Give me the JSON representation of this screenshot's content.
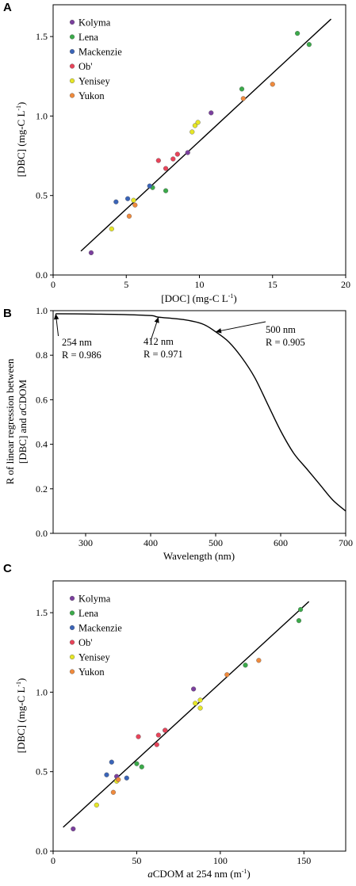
{
  "figure": {
    "panels": [
      {
        "letter": "A",
        "xlabel_parts": [
          "[DOC] (mg-C L",
          "-1",
          ")"
        ],
        "ylabel_parts": [
          "[DBC] (mg-C L",
          "-1",
          ")"
        ]
      },
      {
        "letter": "B",
        "xlabel_parts": [
          "Wavelength (nm)"
        ],
        "ylabel_line1": "R of linear regression between",
        "ylabel_line2_parts": [
          "[DBC] and ",
          "a",
          "CDOM"
        ],
        "annotations": [
          {
            "line1": "254 nm",
            "line2": "R = 0.986"
          },
          {
            "line1": "412 nm",
            "line2": "R = 0.971"
          },
          {
            "line1": "500 nm",
            "line2": "R = 0.905"
          }
        ]
      },
      {
        "letter": "C",
        "xlabel_parts": [
          "a",
          "CDOM at 254 nm (m",
          "-1",
          ")"
        ],
        "ylabel_parts": [
          "[DBC] (mg-C L",
          "-1",
          ")"
        ]
      }
    ]
  },
  "chart_data": [
    {
      "type": "scatter",
      "title": "",
      "xlabel": "[DOC] (mg-C L-1)",
      "ylabel": "[DBC] (mg-C L-1)",
      "xlim": [
        0,
        20
      ],
      "ylim": [
        0,
        1.7
      ],
      "xticks": [
        "0",
        "5",
        "10",
        "15",
        "20"
      ],
      "yticks": [
        "0.0",
        "0.5",
        "1.0",
        "1.5"
      ],
      "legend_position": "top-left",
      "series": [
        {
          "name": "Kolyma",
          "color": "#7B3F9E",
          "points": [
            [
              2.6,
              0.14
            ],
            [
              9.2,
              0.77
            ],
            [
              10.8,
              1.02
            ]
          ]
        },
        {
          "name": "Lena",
          "color": "#3BAA4A",
          "points": [
            [
              6.8,
              0.55
            ],
            [
              7.7,
              0.53
            ],
            [
              12.9,
              1.17
            ],
            [
              16.7,
              1.52
            ],
            [
              17.5,
              1.45
            ]
          ]
        },
        {
          "name": "Mackenzie",
          "color": "#3A64B8",
          "points": [
            [
              4.3,
              0.46
            ],
            [
              5.1,
              0.48
            ],
            [
              6.6,
              0.56
            ]
          ]
        },
        {
          "name": "Ob'",
          "color": "#E8445A",
          "points": [
            [
              7.2,
              0.72
            ],
            [
              7.7,
              0.67
            ],
            [
              8.2,
              0.73
            ],
            [
              8.5,
              0.76
            ]
          ]
        },
        {
          "name": "Yenisey",
          "color": "#E6E626",
          "points": [
            [
              4.0,
              0.29
            ],
            [
              5.5,
              0.47
            ],
            [
              9.5,
              0.9
            ],
            [
              9.7,
              0.94
            ],
            [
              9.9,
              0.96
            ]
          ]
        },
        {
          "name": "Yukon",
          "color": "#F08A3C",
          "points": [
            [
              5.2,
              0.37
            ],
            [
              5.6,
              0.44
            ],
            [
              13.0,
              1.11
            ],
            [
              15.0,
              1.2
            ]
          ]
        }
      ],
      "fit_line": [
        [
          1.9,
          0.15
        ],
        [
          19.0,
          1.61
        ]
      ]
    },
    {
      "type": "line",
      "title": "",
      "xlabel": "Wavelength (nm)",
      "ylabel": "R of linear regression between [DBC] and aCDOM",
      "xlim": [
        250,
        700
      ],
      "ylim": [
        0,
        1.0
      ],
      "xticks": [
        "300",
        "400",
        "500",
        "600",
        "700"
      ],
      "yticks": [
        "0.0",
        "0.2",
        "0.4",
        "0.6",
        "0.8",
        "1.0"
      ],
      "x": [
        254,
        300,
        350,
        400,
        412,
        450,
        480,
        500,
        520,
        540,
        560,
        580,
        600,
        620,
        640,
        660,
        680,
        700
      ],
      "y": [
        0.986,
        0.985,
        0.983,
        0.978,
        0.971,
        0.96,
        0.94,
        0.905,
        0.86,
        0.79,
        0.7,
        0.58,
        0.46,
        0.36,
        0.29,
        0.22,
        0.15,
        0.1
      ],
      "annotations": [
        {
          "text": "254 nm R = 0.986",
          "x": 254,
          "y": 0.986
        },
        {
          "text": "412 nm R = 0.971",
          "x": 412,
          "y": 0.971
        },
        {
          "text": "500 nm R = 0.905",
          "x": 500,
          "y": 0.905
        }
      ]
    },
    {
      "type": "scatter",
      "title": "",
      "xlabel": "aCDOM at 254 nm (m-1)",
      "ylabel": "[DBC] (mg-C L-1)",
      "xlim": [
        0,
        175
      ],
      "ylim": [
        0,
        1.7
      ],
      "xticks": [
        "0",
        "50",
        "100",
        "150"
      ],
      "yticks": [
        "0.0",
        "0.5",
        "1.0",
        "1.5"
      ],
      "legend_position": "top-left",
      "series": [
        {
          "name": "Kolyma",
          "color": "#7B3F9E",
          "points": [
            [
              12,
              0.14
            ],
            [
              38,
              0.47
            ],
            [
              67,
              0.76
            ],
            [
              84,
              1.02
            ]
          ]
        },
        {
          "name": "Lena",
          "color": "#3BAA4A",
          "points": [
            [
              50,
              0.55
            ],
            [
              53,
              0.53
            ],
            [
              115,
              1.17
            ],
            [
              147,
              1.45
            ],
            [
              148,
              1.52
            ]
          ]
        },
        {
          "name": "Mackenzie",
          "color": "#3A64B8",
          "points": [
            [
              32,
              0.48
            ],
            [
              35,
              0.56
            ],
            [
              44,
              0.46
            ]
          ]
        },
        {
          "name": "Ob'",
          "color": "#E8445A",
          "points": [
            [
              51,
              0.72
            ],
            [
              62,
              0.67
            ],
            [
              63,
              0.73
            ],
            [
              67,
              0.76
            ]
          ]
        },
        {
          "name": "Yenisey",
          "color": "#E6E626",
          "points": [
            [
              26,
              0.29
            ],
            [
              38,
              0.44
            ],
            [
              85,
              0.93
            ],
            [
              88,
              0.9
            ],
            [
              88,
              0.95
            ]
          ]
        },
        {
          "name": "Yukon",
          "color": "#F08A3C",
          "points": [
            [
              36,
              0.37
            ],
            [
              39,
              0.45
            ],
            [
              104,
              1.11
            ],
            [
              123,
              1.2
            ]
          ]
        }
      ],
      "fit_line": [
        [
          6,
          0.15
        ],
        [
          153,
          1.57
        ]
      ]
    }
  ]
}
